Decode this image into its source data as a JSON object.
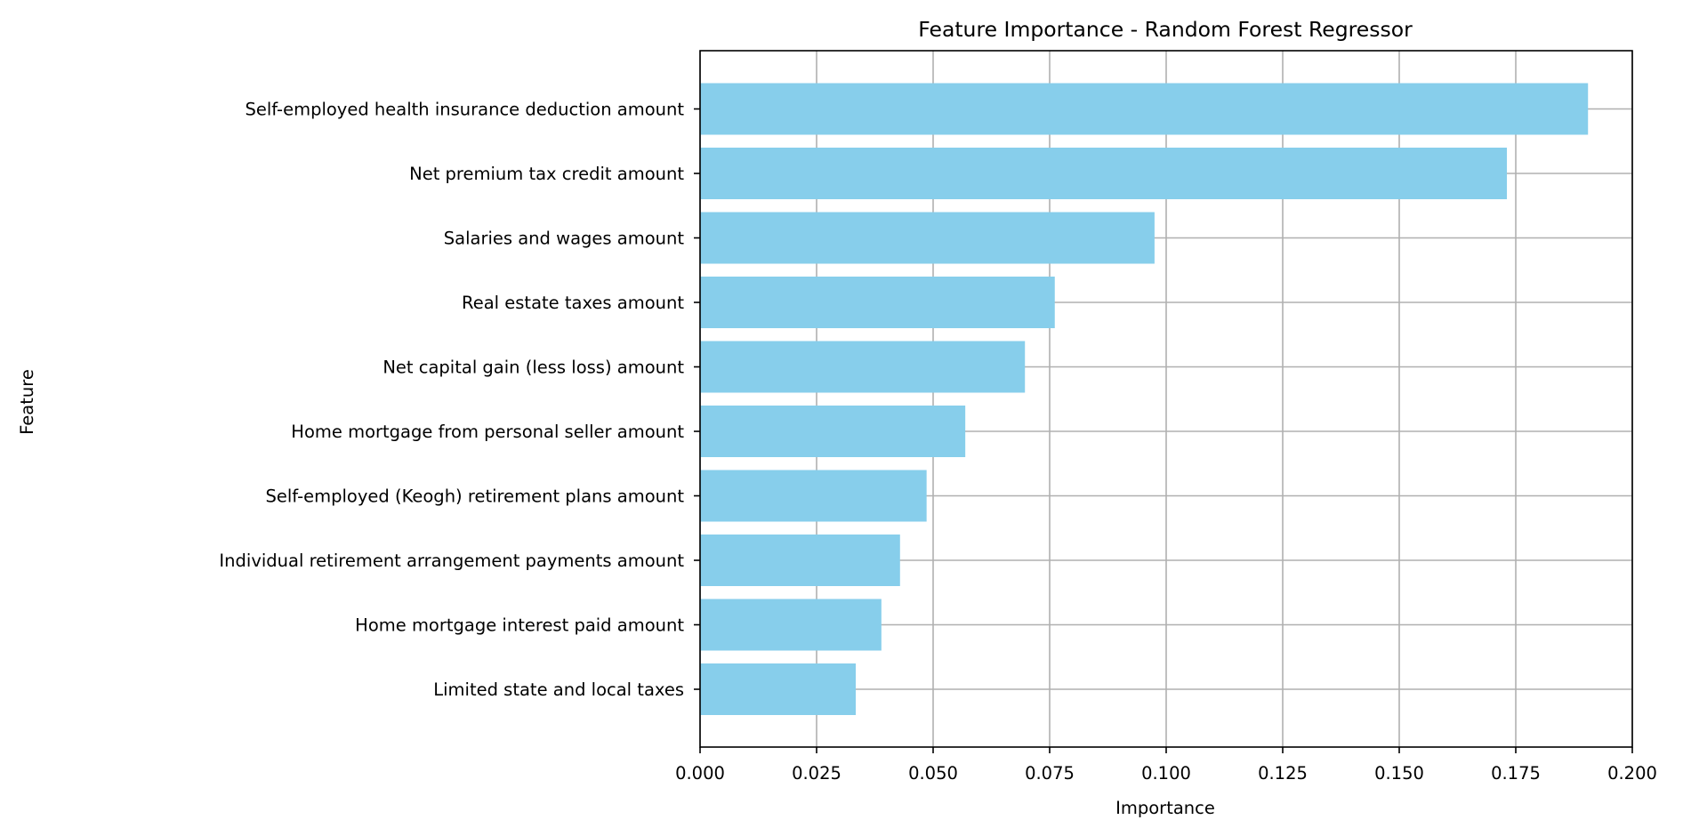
{
  "chart_data": {
    "type": "bar",
    "orientation": "horizontal",
    "title": "Feature Importance - Random Forest Regressor",
    "xlabel": "Importance",
    "ylabel": "Feature",
    "xlim": [
      0,
      0.2
    ],
    "xticks": [
      "0.000",
      "0.025",
      "0.050",
      "0.075",
      "0.100",
      "0.125",
      "0.150",
      "0.175",
      "0.200"
    ],
    "grid": true,
    "bar_color": "#87CEEB",
    "grid_color": "#b0b0b0",
    "categories": [
      "Self-employed health insurance deduction amount",
      "Net premium tax credit amount",
      "Salaries and wages amount",
      "Real estate taxes amount",
      "Net capital gain (less loss) amount",
      "Home mortgage from personal seller amount",
      "Self-employed (Keogh) retirement plans amount",
      "Individual retirement arrangement payments amount",
      "Home mortgage interest paid amount",
      "Limited state and local taxes"
    ],
    "values": [
      0.1905,
      0.1731,
      0.0975,
      0.0761,
      0.0697,
      0.0569,
      0.0486,
      0.0429,
      0.0389,
      0.0334
    ]
  }
}
